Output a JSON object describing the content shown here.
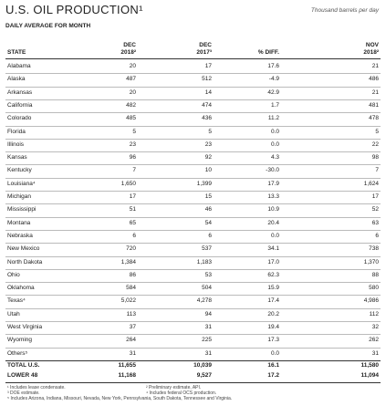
{
  "header": {
    "title": "U.S. OIL PRODUCTION¹",
    "unit": "Thousand barrels per day",
    "subtitle": "DAILY AVERAGE FOR MONTH"
  },
  "table": {
    "columns": [
      [
        "STATE"
      ],
      [
        "DEC",
        "2018²"
      ],
      [
        "DEC",
        "2017³"
      ],
      [
        "% DIFF."
      ],
      [
        "NOV",
        "2018²"
      ]
    ],
    "rows": [
      [
        "Alabama",
        "20",
        "17",
        "17.6",
        "21"
      ],
      [
        "Alaska",
        "487",
        "512",
        "-4.9",
        "486"
      ],
      [
        "Arkansas",
        "20",
        "14",
        "42.9",
        "21"
      ],
      [
        "California",
        "482",
        "474",
        "1.7",
        "481"
      ],
      [
        "Colorado",
        "485",
        "436",
        "11.2",
        "478"
      ],
      [
        "Florida",
        "5",
        "5",
        "0.0",
        "5"
      ],
      [
        "Illinois",
        "23",
        "23",
        "0.0",
        "22"
      ],
      [
        "Kansas",
        "96",
        "92",
        "4.3",
        "98"
      ],
      [
        "Kentucky",
        "7",
        "10",
        "-30.0",
        "7"
      ],
      [
        "Louisiana⁴",
        "1,650",
        "1,399",
        "17.9",
        "1,624"
      ],
      [
        "Michigan",
        "17",
        "15",
        "13.3",
        "17"
      ],
      [
        "Mississippi",
        "51",
        "46",
        "10.9",
        "52"
      ],
      [
        "Montana",
        "65",
        "54",
        "20.4",
        "63"
      ],
      [
        "Nebraska",
        "6",
        "6",
        "0.0",
        "6"
      ],
      [
        "New Mexico",
        "720",
        "537",
        "34.1",
        "738"
      ],
      [
        "North Dakota",
        "1,384",
        "1,183",
        "17.0",
        "1,370"
      ],
      [
        "Ohio",
        "86",
        "53",
        "62.3",
        "88"
      ],
      [
        "Oklahoma",
        "584",
        "504",
        "15.9",
        "580"
      ],
      [
        "Texas⁴",
        "5,022",
        "4,278",
        "17.4",
        "4,986"
      ],
      [
        "Utah",
        "113",
        "94",
        "20.2",
        "112"
      ],
      [
        "West Virginia",
        "37",
        "31",
        "19.4",
        "32"
      ],
      [
        "Wyoming",
        "264",
        "225",
        "17.3",
        "262"
      ],
      [
        "Others⁵",
        "31",
        "31",
        "0.0",
        "31"
      ]
    ],
    "totals": [
      [
        "TOTAL U.S.",
        "11,655",
        "10,039",
        "16.1",
        "11,580"
      ],
      [
        "LOWER 48",
        "11,168",
        "9,527",
        "17.2",
        "11,094"
      ]
    ]
  },
  "footnotes": [
    "¹ Includes lease condensate.",
    "² Preliminary estimate, API.",
    "³ DOE estimate.",
    "⁴ Includes federal OCS production.",
    "⁵ Includes Arizona, Indiana, Missouri, Nevada, New York, Pennsylvania, South Dakota, Tennessee and Virginia."
  ]
}
